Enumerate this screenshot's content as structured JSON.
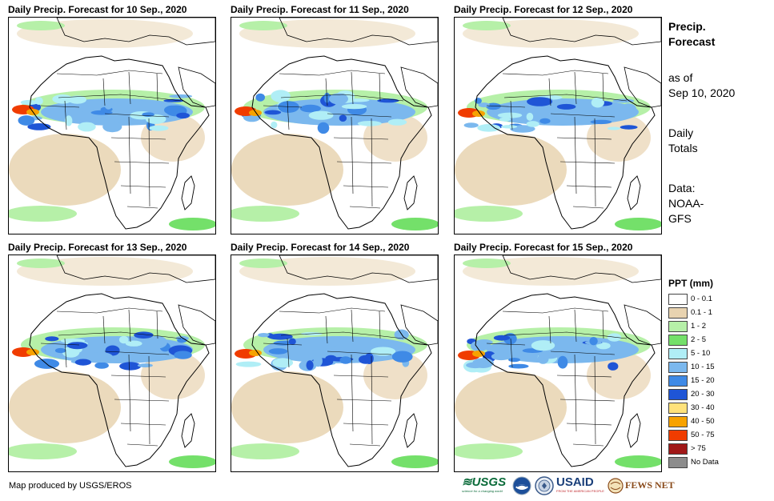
{
  "panels": [
    {
      "title": "Daily Precip. Forecast for 10 Sep., 2020"
    },
    {
      "title": "Daily Precip. Forecast for 11 Sep., 2020"
    },
    {
      "title": "Daily Precip. Forecast for 12 Sep., 2020"
    },
    {
      "title": "Daily Precip. Forecast for 13 Sep., 2020"
    },
    {
      "title": "Daily Precip. Forecast for 14 Sep., 2020"
    },
    {
      "title": "Daily Precip. Forecast for 15 Sep., 2020"
    }
  ],
  "side": {
    "title_line1": "Precip.",
    "title_line2": "Forecast",
    "asof_line1": "as of",
    "asof_line2": "Sep 10, 2020",
    "totals_line1": "Daily",
    "totals_line2": "Totals",
    "data_line1": "Data:",
    "data_line2": "NOAA-",
    "data_line3": "GFS"
  },
  "legend": {
    "title": "PPT (mm)",
    "items": [
      {
        "label": "0 - 0.1",
        "color": "#ffffff"
      },
      {
        "label": "0.1 - 1",
        "color": "#e8d3b0"
      },
      {
        "label": "1 - 2",
        "color": "#b6f0a8"
      },
      {
        "label": "2 - 5",
        "color": "#74e06a"
      },
      {
        "label": "5 - 10",
        "color": "#b0eef6"
      },
      {
        "label": "10 - 15",
        "color": "#7bb8ee"
      },
      {
        "label": "15 - 20",
        "color": "#3f8ae6"
      },
      {
        "label": "20 - 30",
        "color": "#1f55d6"
      },
      {
        "label": "30 - 40",
        "color": "#ffe27a"
      },
      {
        "label": "40 - 50",
        "color": "#f7a200"
      },
      {
        "label": "50 - 75",
        "color": "#f03c00"
      },
      {
        "label": "> 75",
        "color": "#a01818"
      },
      {
        "label": "No Data",
        "color": "#8c8c8c"
      }
    ]
  },
  "credit": "Map produced by USGS/EROS",
  "logos": {
    "usgs": "USGS",
    "usgs_tag": "science for a changing world",
    "usaid": "USAID",
    "usaid_tag": "FROM THE AMERICAN PEOPLE",
    "fews": "FEWS NET"
  }
}
